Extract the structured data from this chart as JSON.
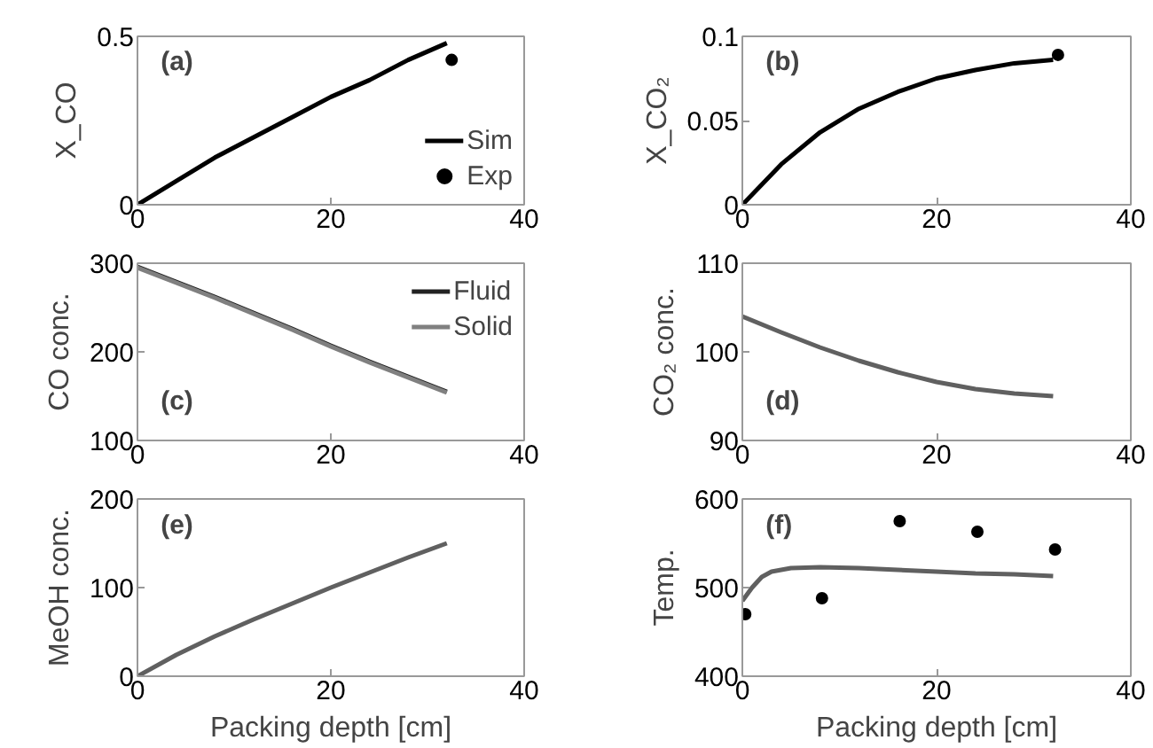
{
  "chart_data": [
    {
      "type": "line",
      "ylabel": "X_CO",
      "annotations": [
        "(a)"
      ],
      "xlim": [
        0,
        40
      ],
      "xticks": [
        0,
        20,
        40
      ],
      "ylim": [
        0,
        0.5
      ],
      "yticks": [
        0,
        0.5
      ],
      "grid": false,
      "legend": "bottom right",
      "series": [
        {
          "name": "Sim",
          "type": "line",
          "color": "#000000",
          "x": [
            0,
            4,
            8,
            12,
            16,
            20,
            24,
            28,
            32
          ],
          "values": [
            0,
            0.07,
            0.14,
            0.2,
            0.26,
            0.32,
            0.37,
            0.43,
            0.48
          ]
        },
        {
          "name": "Exp",
          "type": "scatter",
          "marker": "circle",
          "color": "#000000",
          "x": [
            32.5
          ],
          "values": [
            0.43
          ]
        }
      ]
    },
    {
      "type": "line",
      "ylabel": "X_CO₂",
      "annotations": [
        "(b)"
      ],
      "xlim": [
        0,
        40
      ],
      "xticks": [
        0,
        20,
        40
      ],
      "ylim": [
        0,
        0.1
      ],
      "yticks": [
        0,
        0.05,
        0.1
      ],
      "grid": false,
      "legend": false,
      "series": [
        {
          "type": "line",
          "color": "#000000",
          "x": [
            0,
            4,
            8,
            12,
            16,
            20,
            24,
            28,
            32
          ],
          "values": [
            0,
            0.024,
            0.043,
            0.057,
            0.067,
            0.075,
            0.08,
            0.084,
            0.086
          ]
        },
        {
          "type": "scatter",
          "marker": "circle",
          "color": "#000000",
          "x": [
            32.5
          ],
          "values": [
            0.089
          ]
        }
      ]
    },
    {
      "type": "line",
      "ylabel": "CO conc.",
      "annotations": [
        "(c)"
      ],
      "xlim": [
        0,
        40
      ],
      "xticks": [
        0,
        20,
        40
      ],
      "ylim": [
        100,
        300
      ],
      "yticks": [
        100,
        200,
        300
      ],
      "grid": false,
      "legend": "top right",
      "series": [
        {
          "name": "Fluid",
          "type": "line",
          "color": "#222222",
          "x": [
            0,
            4,
            8,
            12,
            16,
            20,
            24,
            28,
            32
          ],
          "values": [
            296,
            279,
            262,
            244,
            226,
            207,
            189,
            172,
            155
          ]
        },
        {
          "name": "Solid",
          "type": "line",
          "color": "#808080",
          "x": [
            0,
            4,
            8,
            12,
            16,
            20,
            24,
            28,
            32
          ],
          "values": [
            295,
            278,
            261,
            243,
            225,
            206,
            188,
            171,
            154
          ]
        }
      ]
    },
    {
      "type": "line",
      "ylabel": "CO₂ conc.",
      "annotations": [
        "(d)"
      ],
      "xlim": [
        0,
        40
      ],
      "xticks": [
        0,
        20,
        40
      ],
      "ylim": [
        90,
        110
      ],
      "yticks": [
        90,
        100,
        110
      ],
      "grid": false,
      "legend": false,
      "series": [
        {
          "type": "line",
          "color": "#606060",
          "x": [
            0,
            4,
            8,
            12,
            16,
            20,
            24,
            28,
            32
          ],
          "values": [
            104,
            102.2,
            100.5,
            99,
            97.7,
            96.6,
            95.8,
            95.3,
            95
          ]
        }
      ]
    },
    {
      "type": "line",
      "xlabel": "Packing depth [cm]",
      "ylabel": "MeOH conc.",
      "annotations": [
        "(e)"
      ],
      "xlim": [
        0,
        40
      ],
      "xticks": [
        0,
        20,
        40
      ],
      "ylim": [
        0,
        200
      ],
      "yticks": [
        0,
        100,
        200
      ],
      "grid": false,
      "legend": false,
      "series": [
        {
          "type": "line",
          "color": "#606060",
          "x": [
            0,
            4,
            8,
            12,
            16,
            20,
            24,
            28,
            32
          ],
          "values": [
            0,
            24,
            45,
            64,
            82,
            100,
            117,
            134,
            150
          ]
        }
      ]
    },
    {
      "type": "line",
      "xlabel": "Packing depth [cm]",
      "ylabel": "Temp.",
      "annotations": [
        "(f)"
      ],
      "xlim": [
        0,
        40
      ],
      "xticks": [
        0,
        20,
        40
      ],
      "ylim": [
        400,
        600
      ],
      "yticks": [
        400,
        500,
        600
      ],
      "grid": false,
      "legend": false,
      "series": [
        {
          "type": "line",
          "color": "#606060",
          "x": [
            0,
            1,
            2,
            3,
            5,
            8,
            12,
            16,
            20,
            24,
            28,
            32
          ],
          "values": [
            485,
            500,
            512,
            518,
            522,
            523,
            522,
            520,
            518,
            516,
            515,
            513
          ]
        },
        {
          "type": "scatter",
          "marker": "circle",
          "color": "#000000",
          "x": [
            0.3,
            8.2,
            16.2,
            24.2,
            32.2
          ],
          "values": [
            470,
            488,
            575,
            563,
            543
          ]
        }
      ]
    }
  ]
}
